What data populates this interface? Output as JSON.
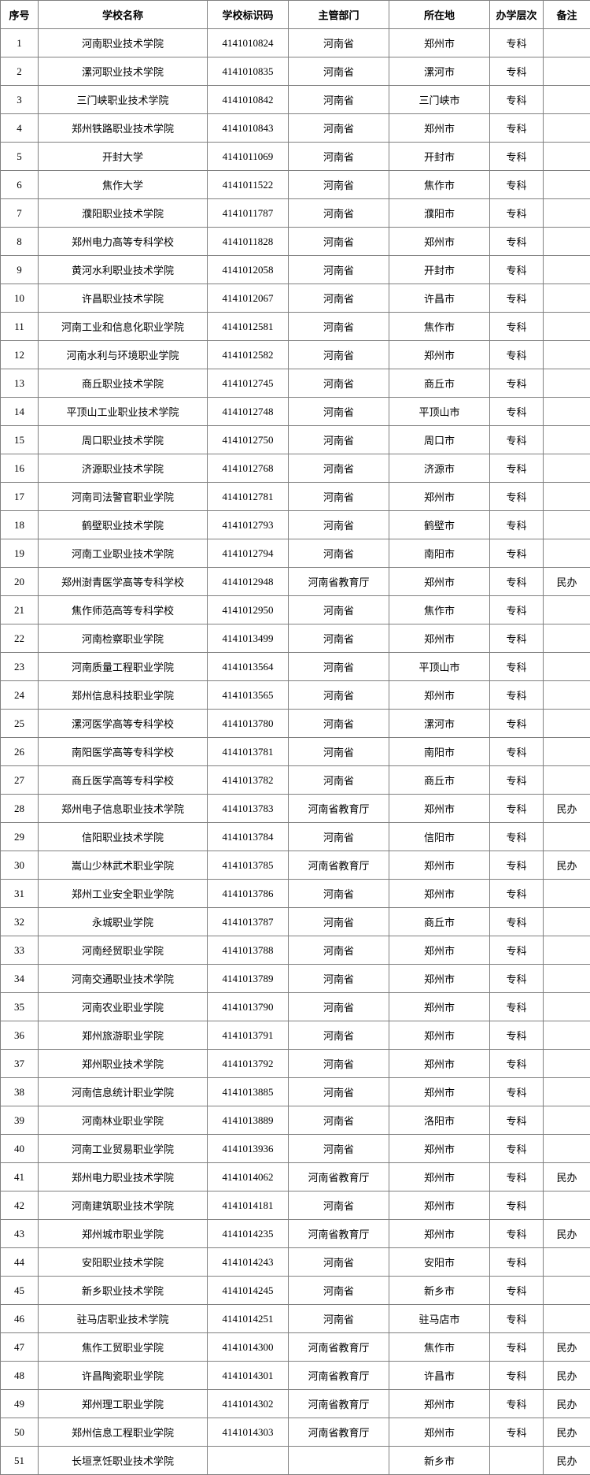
{
  "table": {
    "headers": {
      "index": "序号",
      "name": "学校名称",
      "code": "学校标识码",
      "dept": "主管部门",
      "loc": "所在地",
      "level": "办学层次",
      "note": "备注"
    },
    "rows": [
      {
        "index": "1",
        "name": "河南职业技术学院",
        "code": "4141010824",
        "dept": "河南省",
        "loc": "郑州市",
        "level": "专科",
        "note": ""
      },
      {
        "index": "2",
        "name": "漯河职业技术学院",
        "code": "4141010835",
        "dept": "河南省",
        "loc": "漯河市",
        "level": "专科",
        "note": ""
      },
      {
        "index": "3",
        "name": "三门峡职业技术学院",
        "code": "4141010842",
        "dept": "河南省",
        "loc": "三门峡市",
        "level": "专科",
        "note": ""
      },
      {
        "index": "4",
        "name": "郑州铁路职业技术学院",
        "code": "4141010843",
        "dept": "河南省",
        "loc": "郑州市",
        "level": "专科",
        "note": ""
      },
      {
        "index": "5",
        "name": "开封大学",
        "code": "4141011069",
        "dept": "河南省",
        "loc": "开封市",
        "level": "专科",
        "note": ""
      },
      {
        "index": "6",
        "name": "焦作大学",
        "code": "4141011522",
        "dept": "河南省",
        "loc": "焦作市",
        "level": "专科",
        "note": ""
      },
      {
        "index": "7",
        "name": "濮阳职业技术学院",
        "code": "4141011787",
        "dept": "河南省",
        "loc": "濮阳市",
        "level": "专科",
        "note": ""
      },
      {
        "index": "8",
        "name": "郑州电力高等专科学校",
        "code": "4141011828",
        "dept": "河南省",
        "loc": "郑州市",
        "level": "专科",
        "note": ""
      },
      {
        "index": "9",
        "name": "黄河水利职业技术学院",
        "code": "4141012058",
        "dept": "河南省",
        "loc": "开封市",
        "level": "专科",
        "note": ""
      },
      {
        "index": "10",
        "name": "许昌职业技术学院",
        "code": "4141012067",
        "dept": "河南省",
        "loc": "许昌市",
        "level": "专科",
        "note": ""
      },
      {
        "index": "11",
        "name": "河南工业和信息化职业学院",
        "code": "4141012581",
        "dept": "河南省",
        "loc": "焦作市",
        "level": "专科",
        "note": ""
      },
      {
        "index": "12",
        "name": "河南水利与环境职业学院",
        "code": "4141012582",
        "dept": "河南省",
        "loc": "郑州市",
        "level": "专科",
        "note": ""
      },
      {
        "index": "13",
        "name": "商丘职业技术学院",
        "code": "4141012745",
        "dept": "河南省",
        "loc": "商丘市",
        "level": "专科",
        "note": ""
      },
      {
        "index": "14",
        "name": "平顶山工业职业技术学院",
        "code": "4141012748",
        "dept": "河南省",
        "loc": "平顶山市",
        "level": "专科",
        "note": ""
      },
      {
        "index": "15",
        "name": "周口职业技术学院",
        "code": "4141012750",
        "dept": "河南省",
        "loc": "周口市",
        "level": "专科",
        "note": ""
      },
      {
        "index": "16",
        "name": "济源职业技术学院",
        "code": "4141012768",
        "dept": "河南省",
        "loc": "济源市",
        "level": "专科",
        "note": ""
      },
      {
        "index": "17",
        "name": "河南司法警官职业学院",
        "code": "4141012781",
        "dept": "河南省",
        "loc": "郑州市",
        "level": "专科",
        "note": ""
      },
      {
        "index": "18",
        "name": "鹤壁职业技术学院",
        "code": "4141012793",
        "dept": "河南省",
        "loc": "鹤壁市",
        "level": "专科",
        "note": ""
      },
      {
        "index": "19",
        "name": "河南工业职业技术学院",
        "code": "4141012794",
        "dept": "河南省",
        "loc": "南阳市",
        "level": "专科",
        "note": ""
      },
      {
        "index": "20",
        "name": "郑州澍青医学高等专科学校",
        "code": "4141012948",
        "dept": "河南省教育厅",
        "loc": "郑州市",
        "level": "专科",
        "note": "民办"
      },
      {
        "index": "21",
        "name": "焦作师范高等专科学校",
        "code": "4141012950",
        "dept": "河南省",
        "loc": "焦作市",
        "level": "专科",
        "note": ""
      },
      {
        "index": "22",
        "name": "河南检察职业学院",
        "code": "4141013499",
        "dept": "河南省",
        "loc": "郑州市",
        "level": "专科",
        "note": ""
      },
      {
        "index": "23",
        "name": "河南质量工程职业学院",
        "code": "4141013564",
        "dept": "河南省",
        "loc": "平顶山市",
        "level": "专科",
        "note": ""
      },
      {
        "index": "24",
        "name": "郑州信息科技职业学院",
        "code": "4141013565",
        "dept": "河南省",
        "loc": "郑州市",
        "level": "专科",
        "note": ""
      },
      {
        "index": "25",
        "name": "漯河医学高等专科学校",
        "code": "4141013780",
        "dept": "河南省",
        "loc": "漯河市",
        "level": "专科",
        "note": ""
      },
      {
        "index": "26",
        "name": "南阳医学高等专科学校",
        "code": "4141013781",
        "dept": "河南省",
        "loc": "南阳市",
        "level": "专科",
        "note": ""
      },
      {
        "index": "27",
        "name": "商丘医学高等专科学校",
        "code": "4141013782",
        "dept": "河南省",
        "loc": "商丘市",
        "level": "专科",
        "note": ""
      },
      {
        "index": "28",
        "name": "郑州电子信息职业技术学院",
        "code": "4141013783",
        "dept": "河南省教育厅",
        "loc": "郑州市",
        "level": "专科",
        "note": "民办"
      },
      {
        "index": "29",
        "name": "信阳职业技术学院",
        "code": "4141013784",
        "dept": "河南省",
        "loc": "信阳市",
        "level": "专科",
        "note": ""
      },
      {
        "index": "30",
        "name": "嵩山少林武术职业学院",
        "code": "4141013785",
        "dept": "河南省教育厅",
        "loc": "郑州市",
        "level": "专科",
        "note": "民办"
      },
      {
        "index": "31",
        "name": "郑州工业安全职业学院",
        "code": "4141013786",
        "dept": "河南省",
        "loc": "郑州市",
        "level": "专科",
        "note": ""
      },
      {
        "index": "32",
        "name": "永城职业学院",
        "code": "4141013787",
        "dept": "河南省",
        "loc": "商丘市",
        "level": "专科",
        "note": ""
      },
      {
        "index": "33",
        "name": "河南经贸职业学院",
        "code": "4141013788",
        "dept": "河南省",
        "loc": "郑州市",
        "level": "专科",
        "note": ""
      },
      {
        "index": "34",
        "name": "河南交通职业技术学院",
        "code": "4141013789",
        "dept": "河南省",
        "loc": "郑州市",
        "level": "专科",
        "note": ""
      },
      {
        "index": "35",
        "name": "河南农业职业学院",
        "code": "4141013790",
        "dept": "河南省",
        "loc": "郑州市",
        "level": "专科",
        "note": ""
      },
      {
        "index": "36",
        "name": "郑州旅游职业学院",
        "code": "4141013791",
        "dept": "河南省",
        "loc": "郑州市",
        "level": "专科",
        "note": ""
      },
      {
        "index": "37",
        "name": "郑州职业技术学院",
        "code": "4141013792",
        "dept": "河南省",
        "loc": "郑州市",
        "level": "专科",
        "note": ""
      },
      {
        "index": "38",
        "name": "河南信息统计职业学院",
        "code": "4141013885",
        "dept": "河南省",
        "loc": "郑州市",
        "level": "专科",
        "note": ""
      },
      {
        "index": "39",
        "name": "河南林业职业学院",
        "code": "4141013889",
        "dept": "河南省",
        "loc": "洛阳市",
        "level": "专科",
        "note": ""
      },
      {
        "index": "40",
        "name": "河南工业贸易职业学院",
        "code": "4141013936",
        "dept": "河南省",
        "loc": "郑州市",
        "level": "专科",
        "note": ""
      },
      {
        "index": "41",
        "name": "郑州电力职业技术学院",
        "code": "4141014062",
        "dept": "河南省教育厅",
        "loc": "郑州市",
        "level": "专科",
        "note": "民办"
      },
      {
        "index": "42",
        "name": "河南建筑职业技术学院",
        "code": "4141014181",
        "dept": "河南省",
        "loc": "郑州市",
        "level": "专科",
        "note": ""
      },
      {
        "index": "43",
        "name": "郑州城市职业学院",
        "code": "4141014235",
        "dept": "河南省教育厅",
        "loc": "郑州市",
        "level": "专科",
        "note": "民办"
      },
      {
        "index": "44",
        "name": "安阳职业技术学院",
        "code": "4141014243",
        "dept": "河南省",
        "loc": "安阳市",
        "level": "专科",
        "note": ""
      },
      {
        "index": "45",
        "name": "新乡职业技术学院",
        "code": "4141014245",
        "dept": "河南省",
        "loc": "新乡市",
        "level": "专科",
        "note": ""
      },
      {
        "index": "46",
        "name": "驻马店职业技术学院",
        "code": "4141014251",
        "dept": "河南省",
        "loc": "驻马店市",
        "level": "专科",
        "note": ""
      },
      {
        "index": "47",
        "name": "焦作工贸职业学院",
        "code": "4141014300",
        "dept": "河南省教育厅",
        "loc": "焦作市",
        "level": "专科",
        "note": "民办"
      },
      {
        "index": "48",
        "name": "许昌陶瓷职业学院",
        "code": "4141014301",
        "dept": "河南省教育厅",
        "loc": "许昌市",
        "level": "专科",
        "note": "民办"
      },
      {
        "index": "49",
        "name": "郑州理工职业学院",
        "code": "4141014302",
        "dept": "河南省教育厅",
        "loc": "郑州市",
        "level": "专科",
        "note": "民办"
      },
      {
        "index": "50",
        "name": "郑州信息工程职业学院",
        "code": "4141014303",
        "dept": "河南省教育厅",
        "loc": "郑州市",
        "level": "专科",
        "note": "民办"
      },
      {
        "index": "51",
        "name": "长垣烹饪职业技术学院",
        "code": "",
        "dept": "",
        "loc": "新乡市",
        "level": "",
        "note": "民办"
      }
    ]
  }
}
